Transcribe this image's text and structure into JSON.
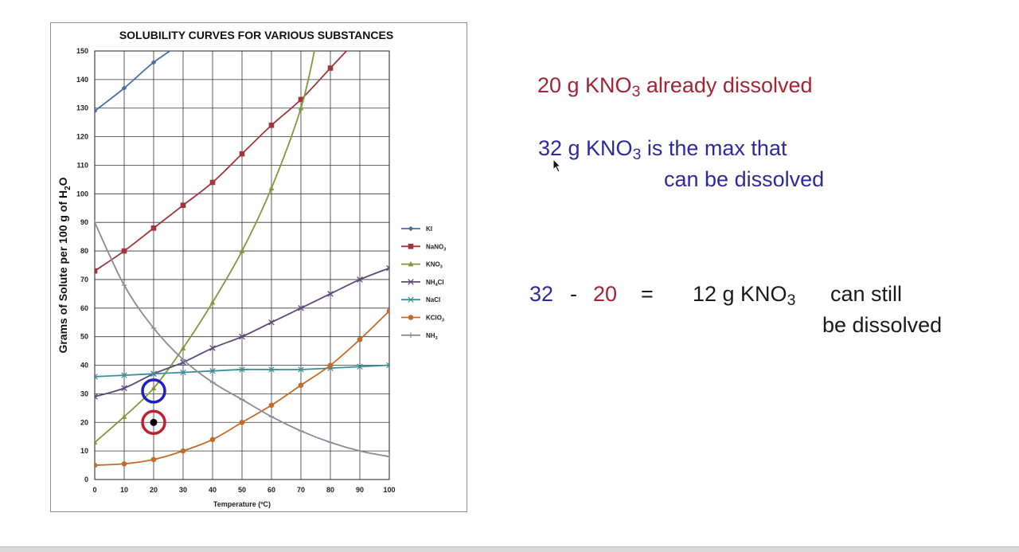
{
  "chart_data": {
    "type": "line",
    "title": "SOLUBILITY CURVES FOR VARIOUS SUBSTANCES",
    "xlabel": "Temperature (ºC)",
    "ylabel": "Grams of Solute per 100 g of H2O",
    "ylabel_parts": [
      "Grams of Solute per 100 g of H",
      "2",
      "O"
    ],
    "xlim": [
      0,
      100
    ],
    "ylim": [
      0,
      150
    ],
    "x_ticks": [
      0,
      10,
      20,
      30,
      40,
      50,
      60,
      70,
      80,
      90,
      100
    ],
    "y_ticks": [
      0,
      10,
      20,
      30,
      40,
      50,
      60,
      70,
      80,
      90,
      100,
      110,
      120,
      130,
      140,
      150
    ],
    "grid": true,
    "legend_position": "right",
    "series": [
      {
        "name": "KI",
        "sub": "",
        "name_tail": "",
        "color": "#4a6fa5",
        "marker": "diamond",
        "x": [
          0,
          10,
          20,
          30
        ],
        "y": [
          129,
          137,
          146,
          153
        ]
      },
      {
        "name": "NaNO",
        "sub": "3",
        "name_tail": "",
        "color": "#a0353a",
        "marker": "square",
        "x": [
          0,
          10,
          20,
          30,
          40,
          50,
          60,
          70,
          80,
          90
        ],
        "y": [
          73,
          80,
          88,
          96,
          104,
          114,
          124,
          133,
          144,
          155
        ]
      },
      {
        "name": "KNO",
        "sub": "3",
        "name_tail": "",
        "color": "#7f9a3c",
        "marker": "triangle",
        "x": [
          0,
          10,
          20,
          30,
          40,
          50,
          60,
          70,
          75
        ],
        "y": [
          13,
          22,
          32,
          46,
          62,
          80,
          102,
          130,
          152
        ]
      },
      {
        "name": "NH",
        "sub": "4",
        "name_tail": "Cl",
        "color": "#5d4a7c",
        "marker": "x",
        "x": [
          0,
          10,
          20,
          30,
          40,
          50,
          60,
          70,
          80,
          90,
          100
        ],
        "y": [
          29,
          32,
          37,
          41,
          46,
          50,
          55,
          60,
          65,
          70,
          74
        ]
      },
      {
        "name": "NaCl",
        "sub": "",
        "name_tail": "",
        "color": "#3b8f99",
        "marker": "star",
        "x": [
          0,
          10,
          20,
          30,
          40,
          50,
          60,
          70,
          80,
          90,
          100
        ],
        "y": [
          36,
          36.5,
          37,
          37.5,
          38,
          38.5,
          38.5,
          38.5,
          39,
          39.5,
          40
        ]
      },
      {
        "name": "KClO",
        "sub": "3",
        "name_tail": "",
        "color": "#c56a28",
        "marker": "circle",
        "x": [
          0,
          10,
          20,
          30,
          40,
          50,
          60,
          70,
          80,
          90,
          100
        ],
        "y": [
          5,
          5.5,
          7,
          10,
          14,
          20,
          26,
          33,
          40,
          49,
          59
        ]
      },
      {
        "name": "NH",
        "sub": "3",
        "name_tail": "",
        "color": "#8a8a9a",
        "marker": "plus",
        "x": [
          0,
          10,
          20,
          30,
          40,
          50,
          60,
          70,
          80,
          90,
          100
        ],
        "y": [
          90,
          68,
          53,
          42,
          34,
          28,
          22,
          17,
          13,
          10,
          8
        ]
      }
    ],
    "highlights": [
      {
        "kind": "blue-circle",
        "x": 20,
        "y": 31,
        "color": "#1f1fc7"
      },
      {
        "kind": "red-circle-dot",
        "x": 20,
        "y": 20,
        "color": "#c01f2e"
      }
    ]
  },
  "annotations": {
    "line1": {
      "pre": "20 g KNO",
      "sub": "3",
      "post": " already dissolved"
    },
    "line2": {
      "pre": "32 g KNO",
      "sub": "3",
      "post": " is the max that"
    },
    "line2b": "can be dissolved",
    "eq": {
      "a": "32",
      "minus": "-",
      "b": "20",
      "equals": "=",
      "result_pre": "12 g KNO",
      "result_sub": "3",
      "result_post": "can still"
    },
    "eq2": "be dissolved"
  },
  "colors": {
    "red_text": "#a52433",
    "blue_text": "#2e2a9b"
  },
  "icons": {
    "cursor": "mouse-pointer-icon"
  }
}
